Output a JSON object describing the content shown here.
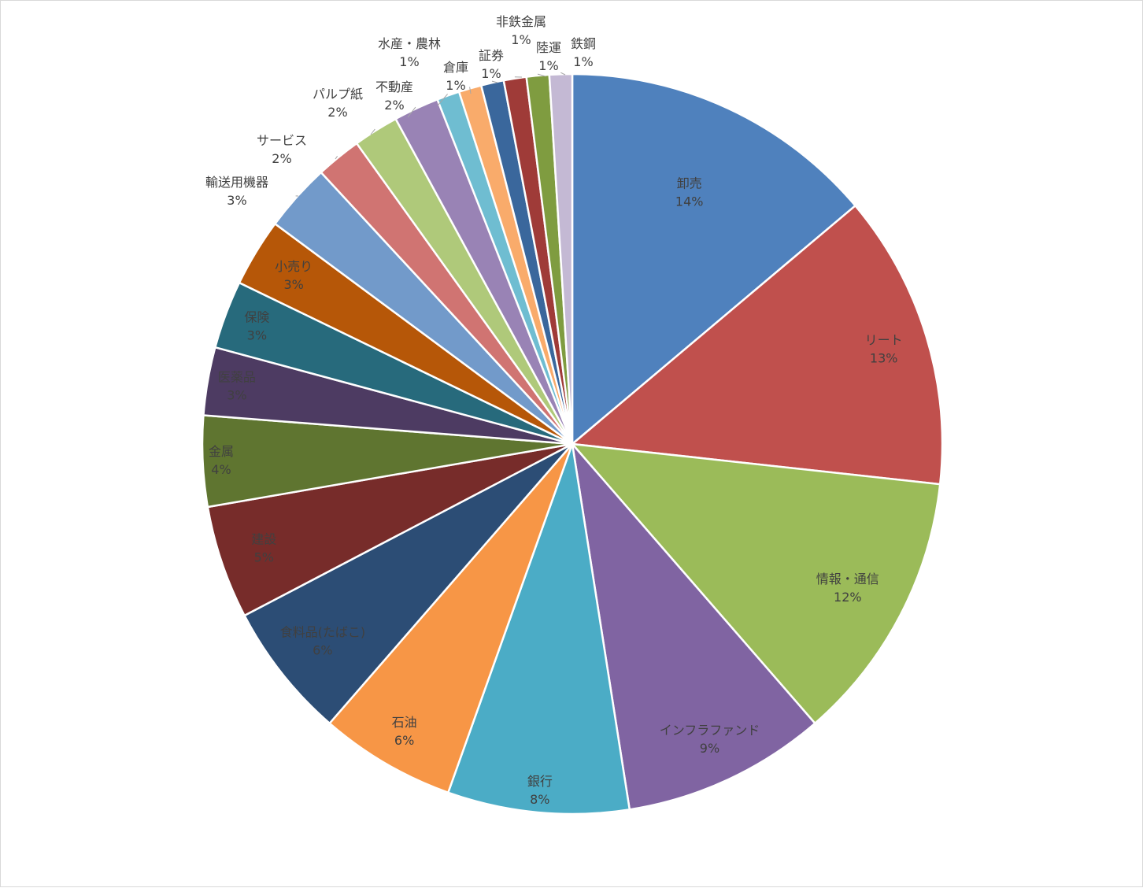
{
  "chart_data": {
    "type": "pie",
    "title": "",
    "slices": [
      {
        "name": "卸売",
        "value": 14,
        "label": "14%",
        "color": "#4f81bd"
      },
      {
        "name": "リート",
        "value": 13,
        "label": "13%",
        "color": "#c0504d"
      },
      {
        "name": "情報・通信",
        "value": 12,
        "label": "12%",
        "color": "#9bbb59"
      },
      {
        "name": "インフラファンド",
        "value": 9,
        "label": "9%",
        "color": "#8064a2"
      },
      {
        "name": "銀行",
        "value": 8,
        "label": "8%",
        "color": "#4bacc6"
      },
      {
        "name": "石油",
        "value": 6,
        "label": "6%",
        "color": "#f79646"
      },
      {
        "name": "食料品(たばこ)",
        "value": 6,
        "label": "6%",
        "color": "#2c4d75"
      },
      {
        "name": "建設",
        "value": 5,
        "label": "5%",
        "color": "#772c2a"
      },
      {
        "name": "金属",
        "value": 4,
        "label": "4%",
        "color": "#5f7530"
      },
      {
        "name": "医薬品",
        "value": 3,
        "label": "3%",
        "color": "#4d3b62"
      },
      {
        "name": "保険",
        "value": 3,
        "label": "3%",
        "color": "#276a7c"
      },
      {
        "name": "小売り",
        "value": 3,
        "label": "3%",
        "color": "#b65708"
      },
      {
        "name": "輸送用機器",
        "value": 3,
        "label": "3%",
        "color": "#729aca"
      },
      {
        "name": "サービス",
        "value": 2,
        "label": "2%",
        "color": "#d07472"
      },
      {
        "name": "パルプ紙",
        "value": 2,
        "label": "2%",
        "color": "#afc97a"
      },
      {
        "name": "不動産",
        "value": 2,
        "label": "2%",
        "color": "#9983b5"
      },
      {
        "name": "水産・農林",
        "value": 1,
        "label": "1%",
        "color": "#6fbdd1"
      },
      {
        "name": "倉庫",
        "value": 1,
        "label": "1%",
        "color": "#f9ab6b"
      },
      {
        "name": "証券",
        "value": 1,
        "label": "1%",
        "color": "#3a679c"
      },
      {
        "name": "非鉄金属",
        "value": 1,
        "label": "1%",
        "color": "#9f3b38"
      },
      {
        "name": "陸運",
        "value": 1,
        "label": "1%",
        "color": "#7f9c40"
      },
      {
        "name": "鉄鋼",
        "value": 1,
        "label": "1%",
        "color": "#c4b9d4"
      }
    ]
  }
}
